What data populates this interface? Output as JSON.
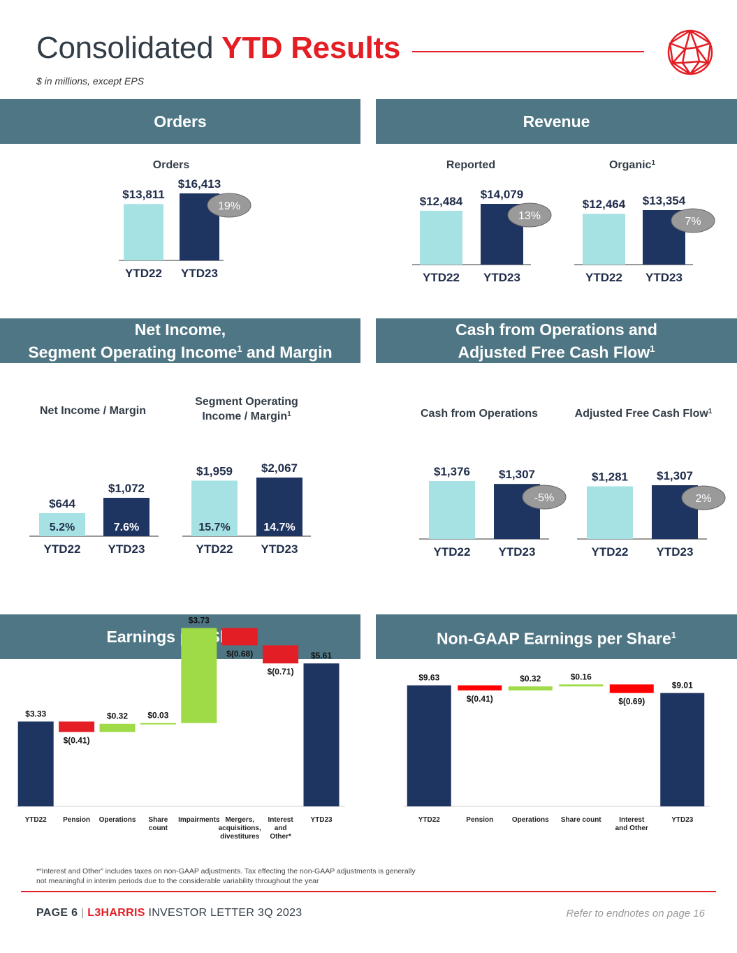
{
  "title": {
    "plain": "Consolidated ",
    "highlight": "YTD Results"
  },
  "subtitle": "$ in millions, except EPS",
  "colors": {
    "light": "#a6e2e3",
    "dark": "#1e3461",
    "red": "#e31e24",
    "redBar": "#ff0000",
    "green": "#9edb46",
    "band": "#4f7684",
    "pill": "#9a9a9a"
  },
  "sections": {
    "orders": "Orders",
    "revenue": "Revenue",
    "net_income_l1": "Net Income,",
    "net_income_l2": "Segment Operating Income",
    "net_income_l2b": " and Margin",
    "cash_l1": "Cash from Operations and",
    "cash_l2": "Adjusted Free Cash Flow",
    "eps": "Earnings per Share",
    "nongaap_eps": "Non-GAAP Earnings per Share",
    "sup": "1"
  },
  "chart_data": [
    {
      "type": "bar",
      "title": "Orders",
      "categories": [
        "YTD22",
        "YTD23"
      ],
      "values": [
        13811,
        16413
      ],
      "value_labels": [
        "$13,811",
        "$16,413"
      ],
      "change": "19%"
    },
    {
      "type": "bar",
      "title": "Reported",
      "categories": [
        "YTD22",
        "YTD23"
      ],
      "values": [
        12484,
        14079
      ],
      "value_labels": [
        "$12,484",
        "$14,079"
      ],
      "change": "13%"
    },
    {
      "type": "bar",
      "title": "Organic",
      "title_sup": "1",
      "categories": [
        "YTD22",
        "YTD23"
      ],
      "values": [
        12464,
        13354
      ],
      "value_labels": [
        "$12,464",
        "$13,354"
      ],
      "change": "7%"
    },
    {
      "type": "bar",
      "title": "Net Income  / Margin",
      "categories": [
        "YTD22",
        "YTD23"
      ],
      "values": [
        644,
        1072
      ],
      "value_labels": [
        "$644",
        "$1,072"
      ],
      "margins": [
        "5.2%",
        "7.6%"
      ]
    },
    {
      "type": "bar",
      "title_lines": [
        "Segment Operating",
        "Income / Margin"
      ],
      "title_sup": "1",
      "categories": [
        "YTD22",
        "YTD23"
      ],
      "values": [
        1959,
        2067
      ],
      "value_labels": [
        "$1,959",
        "$2,067"
      ],
      "margins": [
        "15.7%",
        "14.7%"
      ]
    },
    {
      "type": "bar",
      "title": "Cash from Operations",
      "categories": [
        "YTD22",
        "YTD23"
      ],
      "values": [
        1376,
        1307
      ],
      "value_labels": [
        "$1,376",
        "$1,307"
      ],
      "change": "-5%"
    },
    {
      "type": "bar",
      "title": "Adjusted Free Cash Flow",
      "title_sup": "1",
      "categories": [
        "YTD22",
        "YTD23"
      ],
      "values": [
        1281,
        1307
      ],
      "value_labels": [
        "$1,281",
        "$1,307"
      ],
      "change": "2%"
    },
    {
      "type": "waterfall",
      "title": "Earnings per Share",
      "steps": [
        {
          "label": [
            "YTD22"
          ],
          "value": 3.33,
          "kind": "total",
          "text": "$3.33"
        },
        {
          "label": [
            "Pension"
          ],
          "value": -0.41,
          "kind": "neg",
          "text": "$(0.41)"
        },
        {
          "label": [
            "Operations"
          ],
          "value": 0.32,
          "kind": "pos",
          "text": "$0.32"
        },
        {
          "label": [
            "Share",
            "count"
          ],
          "value": 0.03,
          "kind": "pos",
          "text": "$0.03"
        },
        {
          "label": [
            "Impairments"
          ],
          "value": 3.73,
          "kind": "pos",
          "text": "$3.73"
        },
        {
          "label": [
            "Mergers,",
            "acquisitions,",
            "divestitures"
          ],
          "value": -0.68,
          "kind": "neg",
          "text": "$(0.68)"
        },
        {
          "label": [
            "Interest",
            "and",
            "Other*"
          ],
          "value": -0.71,
          "kind": "neg",
          "text": "$(0.71)"
        },
        {
          "label": [
            "YTD23"
          ],
          "value": 5.61,
          "kind": "total",
          "text": "$5.61"
        }
      ]
    },
    {
      "type": "waterfall",
      "title": "Non-GAAP Earnings per Share",
      "steps": [
        {
          "label": [
            "YTD22"
          ],
          "value": 9.63,
          "kind": "total",
          "text": "$9.63"
        },
        {
          "label": [
            "Pension"
          ],
          "value": -0.41,
          "kind": "neg",
          "text": "$(0.41)"
        },
        {
          "label": [
            "Operations"
          ],
          "value": 0.32,
          "kind": "pos",
          "text": "$0.32"
        },
        {
          "label": [
            "Share count"
          ],
          "value": 0.16,
          "kind": "pos",
          "text": "$0.16"
        },
        {
          "label": [
            "Interest",
            "and Other"
          ],
          "value": -0.69,
          "kind": "neg",
          "text": "$(0.69)"
        },
        {
          "label": [
            "YTD23"
          ],
          "value": 9.01,
          "kind": "total",
          "text": "$9.01"
        }
      ]
    }
  ],
  "footnote": "*“Interest and Other” includes taxes on non-GAAP adjustments. Tax effecting the non-GAAP adjustments is generally not meaningful in interim periods due to the considerable variability throughout the year",
  "footer": {
    "page": "PAGE 6",
    "sep": "|",
    "brand": "L3HARRIS",
    "rest": "INVESTOR LETTER 3Q 2023",
    "right": "Refer to endnotes on page 16"
  }
}
